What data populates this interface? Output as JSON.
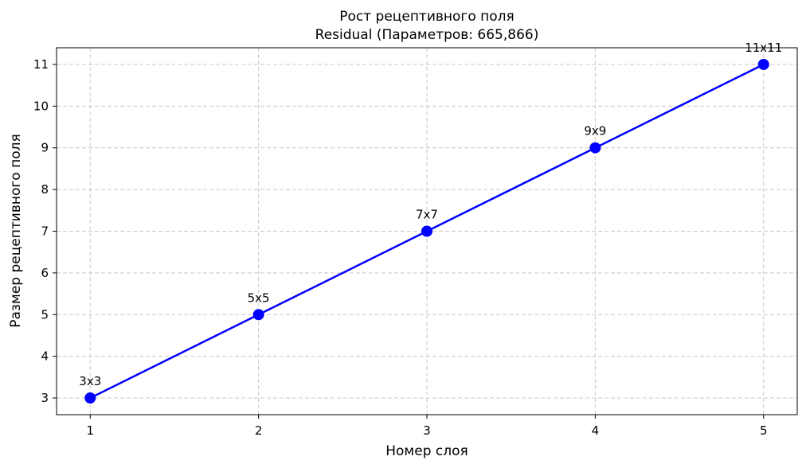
{
  "chart_data": {
    "type": "line",
    "title": "Рост рецептивного поля",
    "subtitle": "Residual (Параметров: 665,866)",
    "xlabel": "Номер слоя",
    "ylabel": "Размер рецептивного поля",
    "x": [
      1,
      2,
      3,
      4,
      5
    ],
    "xlim": [
      0.8,
      5.2
    ],
    "ylim": [
      2.6,
      11.4
    ],
    "xticks": [
      1,
      2,
      3,
      4,
      5
    ],
    "yticks": [
      3,
      4,
      5,
      6,
      7,
      8,
      9,
      10,
      11
    ],
    "grid": true,
    "series": [
      {
        "values": [
          3,
          5,
          7,
          9,
          11
        ],
        "labels": [
          "3x3",
          "5x5",
          "7x7",
          "9x9",
          "11x11"
        ],
        "color": "#0000ff",
        "marker": "circle"
      }
    ],
    "grid_color": "#c8c8c8"
  }
}
